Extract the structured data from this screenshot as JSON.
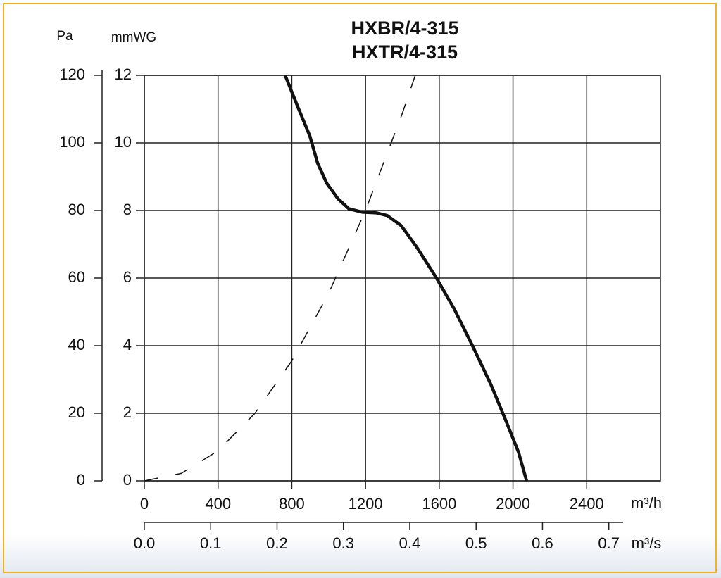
{
  "chart_data": {
    "type": "line",
    "title": "HXBR/4-315",
    "subtitle": "HXTR/4-315",
    "xlabel": "m³/h",
    "x2label": "m³/s",
    "ylabel": "mmWG",
    "y2label": "Pa",
    "xlim": [
      0,
      2800
    ],
    "xticks": [
      0,
      400,
      800,
      1200,
      1600,
      2000,
      2400
    ],
    "x2lim": [
      0,
      0.7778
    ],
    "x2ticks": [
      {
        "value": 0,
        "label": "0.0"
      },
      0.1,
      0.2,
      0.3,
      0.4,
      0.5,
      0.6,
      0.7
    ],
    "ylim": [
      0,
      12
    ],
    "yticks": [
      0,
      2,
      4,
      6,
      8,
      10,
      12
    ],
    "y2lim": [
      0,
      120
    ],
    "y2ticks": [
      0,
      20,
      40,
      60,
      80,
      100,
      120
    ],
    "grid": true,
    "series": [
      {
        "color": "#111111",
        "style": "solid",
        "x": [
          764,
          830,
          898,
          940,
          990,
          1050,
          1110,
          1184,
          1260,
          1318,
          1394,
          1480,
          1585,
          1680,
          1780,
          1880,
          1960,
          2030,
          2074
        ],
        "values": [
          12,
          11.1,
          10.2,
          9.4,
          8.8,
          8.35,
          8.05,
          7.95,
          7.93,
          7.85,
          7.55,
          6.9,
          6.0,
          5.1,
          4.0,
          2.85,
          1.8,
          0.85,
          0
        ]
      },
      {
        "color": "#111111",
        "style": "dashed",
        "x": [
          0,
          200,
          400,
          600,
          800,
          1000,
          1200,
          1400,
          1470
        ],
        "values": [
          0,
          0.22,
          0.89,
          2.0,
          3.55,
          5.55,
          8.0,
          10.88,
          12
        ]
      }
    ]
  }
}
